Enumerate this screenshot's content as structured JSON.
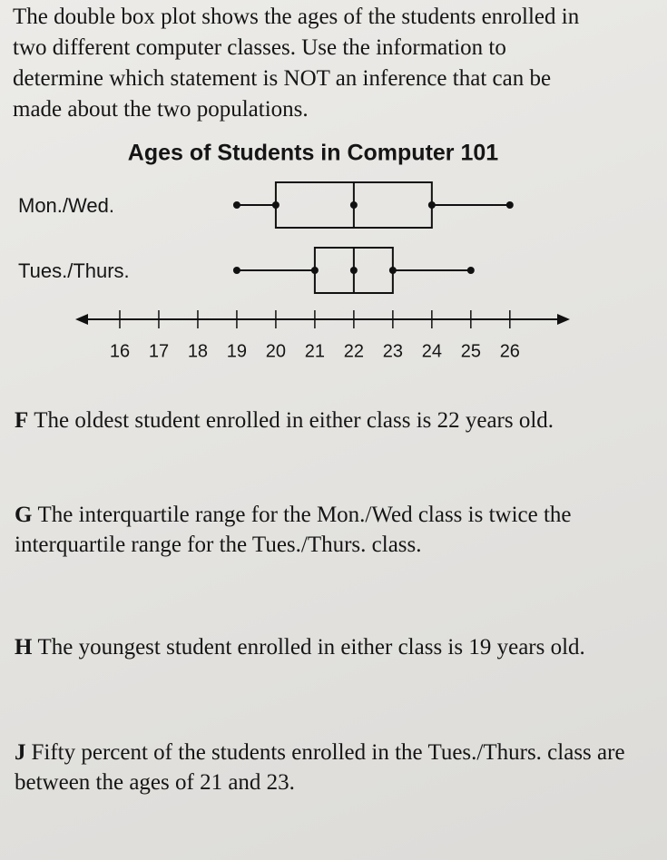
{
  "question": "The double box plot shows the ages of the students enrolled in two different computer classes. Use the information to determine which statement is NOT an inference that can be made about the two populations.",
  "chart_data": {
    "type": "box",
    "title": "Ages of Students in Computer 101",
    "series": [
      {
        "name": "Mon./Wed.",
        "min": 19,
        "q1": 20,
        "median": 22,
        "q3": 24,
        "max": 26
      },
      {
        "name": "Tues./Thurs.",
        "min": 19,
        "q1": 21,
        "median": 22,
        "q3": 23,
        "max": 25
      }
    ],
    "xlim": [
      15,
      27.4
    ],
    "xticks": [
      16,
      17,
      18,
      19,
      20,
      21,
      22,
      23,
      24,
      25,
      26
    ],
    "color": "#111111"
  },
  "options": [
    {
      "letter": "F",
      "text": "The oldest student enrolled in either class is 22 years old."
    },
    {
      "letter": "G",
      "text": "The interquartile range for the Mon./Wed class is twice the interquartile range for the Tues./Thurs. class."
    },
    {
      "letter": "H",
      "text": "The youngest student enrolled in either class is 19 years old."
    },
    {
      "letter": "J",
      "text": "Fifty percent of the students enrolled in the Tues./Thurs. class are between the ages of 21 and 23."
    }
  ]
}
